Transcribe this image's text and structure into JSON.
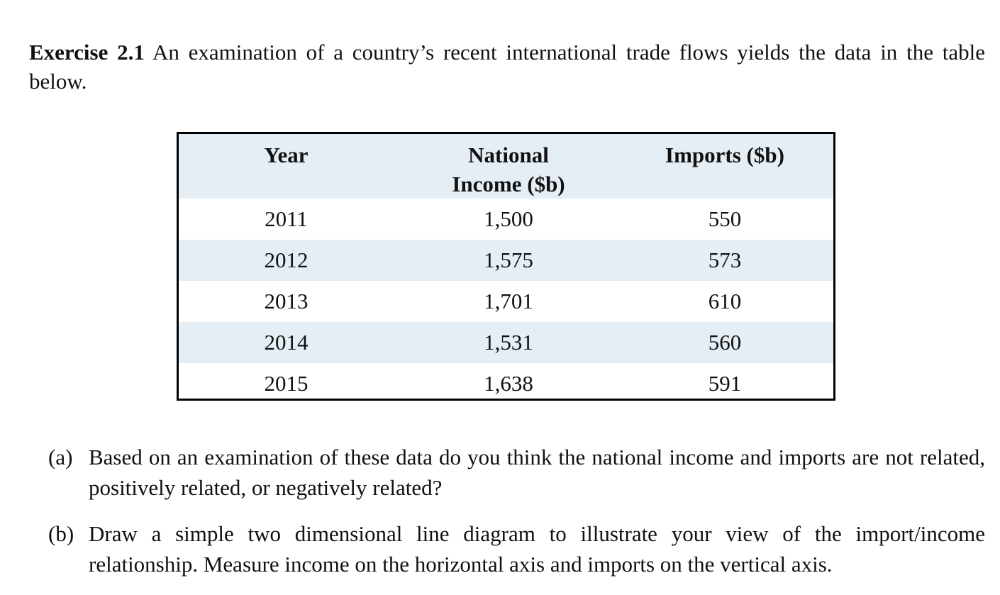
{
  "exercise": {
    "label": "Exercise 2.1",
    "intro": "An examination of a country’s recent international trade flows yields the data in the table below."
  },
  "table": {
    "headers": {
      "year": "Year",
      "income": "National Income ($b)",
      "imports": "Imports ($b)"
    },
    "rows": [
      {
        "year": "2011",
        "income": "1,500",
        "imports": "550"
      },
      {
        "year": "2012",
        "income": "1,575",
        "imports": "573"
      },
      {
        "year": "2013",
        "income": "1,701",
        "imports": "610"
      },
      {
        "year": "2014",
        "income": "1,531",
        "imports": "560"
      },
      {
        "year": "2015",
        "income": "1,638",
        "imports": "591"
      }
    ]
  },
  "questions": [
    {
      "label": "(a)",
      "text": "Based on an examination of these data do you think the national income and imports are not related, positively related, or negatively related?"
    },
    {
      "label": "(b)",
      "text": "Draw a simple two dimensional line diagram to illustrate your view of the import/income relationship. Measure income on the horizontal axis and imports on the vertical axis."
    }
  ]
}
